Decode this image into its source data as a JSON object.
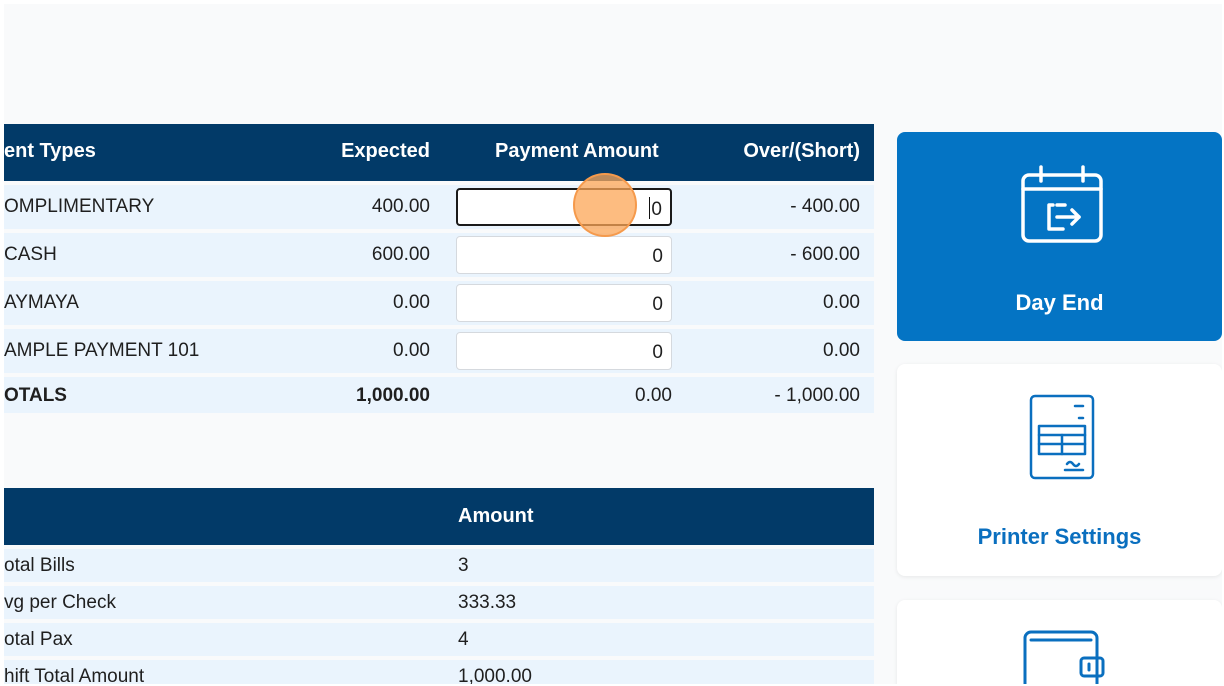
{
  "payment_table": {
    "headers": {
      "type": "ent Types",
      "expected": "Expected",
      "payment_amount": "Payment Amount",
      "over_short": "Over/(Short)"
    },
    "rows": [
      {
        "name": "OMPLIMENTARY",
        "expected": "400.00",
        "payment": "0",
        "over": "- 400.00"
      },
      {
        "name": "CASH",
        "expected": "600.00",
        "payment": "0",
        "over": "- 600.00"
      },
      {
        "name": "AYMAYA",
        "expected": "0.00",
        "payment": "0",
        "over": "0.00"
      },
      {
        "name": "AMPLE PAYMENT 101",
        "expected": "0.00",
        "payment": "0",
        "over": "0.00"
      }
    ],
    "totals": {
      "name": "OTALS",
      "expected": "1,000.00",
      "payment": "0.00",
      "over": "- 1,000.00"
    }
  },
  "summary_table": {
    "header_amount": "Amount",
    "rows": [
      {
        "label": "otal Bills",
        "amount": "3"
      },
      {
        "label": "vg per Check",
        "amount": "333.33"
      },
      {
        "label": "otal Pax",
        "amount": "4"
      },
      {
        "label": "hift Total Amount",
        "amount": "1,000.00"
      }
    ]
  },
  "actions": {
    "day_end": {
      "label": "Day End",
      "icon": "calendar-exit-icon",
      "color": "#0474c4"
    },
    "printer_settings": {
      "label": "Printer Settings",
      "icon": "printer-receipt-icon",
      "color": "#0a6fbf"
    },
    "third": {
      "icon": "wallet-icon"
    }
  }
}
